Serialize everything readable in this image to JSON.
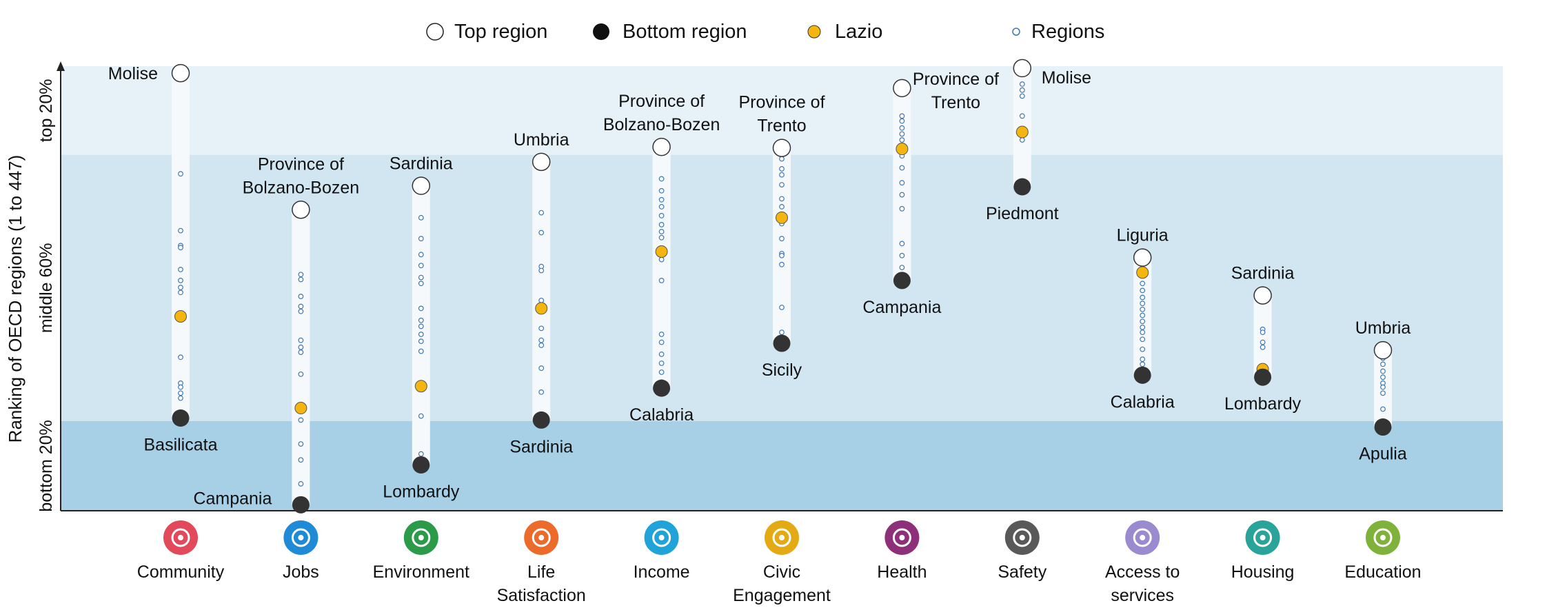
{
  "legend": {
    "top": "Top region",
    "bottom": "Bottom region",
    "lazio": "Lazio",
    "regions": "Regions"
  },
  "colors": {
    "band_top": "#e6f1f8",
    "band_middle": "#d2e6f1",
    "band_bottom": "#a7cfe6",
    "lazio": "#f5b50f",
    "bottom_marker": "#333333",
    "region_ring": "#3c78b4"
  },
  "chart_data": {
    "type": "scatter",
    "y_axis": {
      "label": "Ranking of OECD regions (1 to 447)",
      "range": [
        447,
        1
      ],
      "bands": [
        {
          "label": "top 20%",
          "from": 1,
          "to": 90
        },
        {
          "label": "middle 60%",
          "from": 90,
          "to": 357
        },
        {
          "label": "bottom 20%",
          "from": 357,
          "to": 447
        }
      ]
    },
    "categories": [
      {
        "name": "Community",
        "color": "#e24a5b",
        "top": {
          "label": "Molise",
          "rank": 8
        },
        "bottom": {
          "label": "Basilicata",
          "rank": 354
        },
        "lazio": 252,
        "regions": [
          109,
          166,
          181,
          183,
          205,
          216,
          223,
          228,
          293,
          319,
          323,
          329,
          334
        ]
      },
      {
        "name": "Jobs",
        "color": "#1f8bd6",
        "top": {
          "label": "Province of Bolzano-Bozen",
          "rank": 145
        },
        "bottom": {
          "label": "Campania",
          "rank": 441
        },
        "lazio": 344,
        "regions": [
          210,
          215,
          232,
          242,
          247,
          276,
          283,
          288,
          310,
          356,
          380,
          396,
          420
        ]
      },
      {
        "name": "Environment",
        "color": "#2b9a49",
        "top": {
          "label": "Sardinia",
          "rank": 121
        },
        "bottom": {
          "label": "Lombardy",
          "rank": 401
        },
        "lazio": 322,
        "regions": [
          153,
          174,
          190,
          201,
          213,
          219,
          244,
          256,
          262,
          270,
          277,
          287,
          352,
          390
        ]
      },
      {
        "name": "Life Satisfaction",
        "color": "#ec6b2b",
        "top": {
          "label": "Umbria",
          "rank": 97
        },
        "bottom": {
          "label": "Sardinia",
          "rank": 356
        },
        "lazio": 244,
        "regions": [
          148,
          168,
          202,
          206,
          236,
          264,
          276,
          281,
          304,
          328
        ]
      },
      {
        "name": "Income",
        "color": "#1fa3d8",
        "top": {
          "label": "Province of Bolzano-Bozen",
          "rank": 82
        },
        "bottom": {
          "label": "Calabria",
          "rank": 324
        },
        "lazio": 187,
        "regions": [
          114,
          126,
          135,
          142,
          151,
          160,
          167,
          173,
          195,
          216,
          270,
          278,
          290,
          299,
          308,
          318
        ]
      },
      {
        "name": "Civic Engagement",
        "color": "#e3aa14",
        "top": {
          "label": "Province of Trento",
          "rank": 83
        },
        "bottom": {
          "label": "Sicily",
          "rank": 279
        },
        "lazio": 153,
        "regions": [
          94,
          104,
          110,
          120,
          134,
          142,
          159,
          174,
          189,
          191,
          200,
          243,
          268
        ]
      },
      {
        "name": "Health",
        "color": "#8e2f7a",
        "top": {
          "label": "Province of Trento",
          "rank": 23
        },
        "bottom": {
          "label": "Campania",
          "rank": 216
        },
        "lazio": 84,
        "regions": [
          51,
          56,
          63,
          69,
          75,
          91,
          103,
          118,
          130,
          144,
          179,
          191,
          203
        ]
      },
      {
        "name": "Safety",
        "color": "#595959",
        "top": {
          "label": "Molise",
          "rank": 3
        },
        "bottom": {
          "label": "Piedmont",
          "rank": 122
        },
        "lazio": 67,
        "regions": [
          19,
          25,
          31,
          51,
          75
        ]
      },
      {
        "name": "Access to services",
        "color": "#9a8ad0",
        "top": {
          "label": "Liguria",
          "rank": 193
        },
        "bottom": {
          "label": "Calabria",
          "rank": 311
        },
        "lazio": 208,
        "regions": [
          219,
          226,
          233,
          239,
          245,
          251,
          257,
          263,
          268,
          275,
          285,
          295,
          300
        ]
      },
      {
        "name": "Housing",
        "color": "#2aa39a",
        "top": {
          "label": "Sardinia",
          "rank": 231
        },
        "bottom": {
          "label": "Lombardy",
          "rank": 313
        },
        "lazio": 305,
        "regions": [
          265,
          268,
          278,
          283
        ]
      },
      {
        "name": "Education",
        "color": "#7fb23b",
        "top": {
          "label": "Umbria",
          "rank": 286
        },
        "bottom": {
          "label": "Apulia",
          "rank": 363
        },
        "lazio": 287,
        "regions": [
          288,
          294,
          300,
          307,
          313,
          319,
          323,
          329,
          345
        ]
      }
    ]
  }
}
